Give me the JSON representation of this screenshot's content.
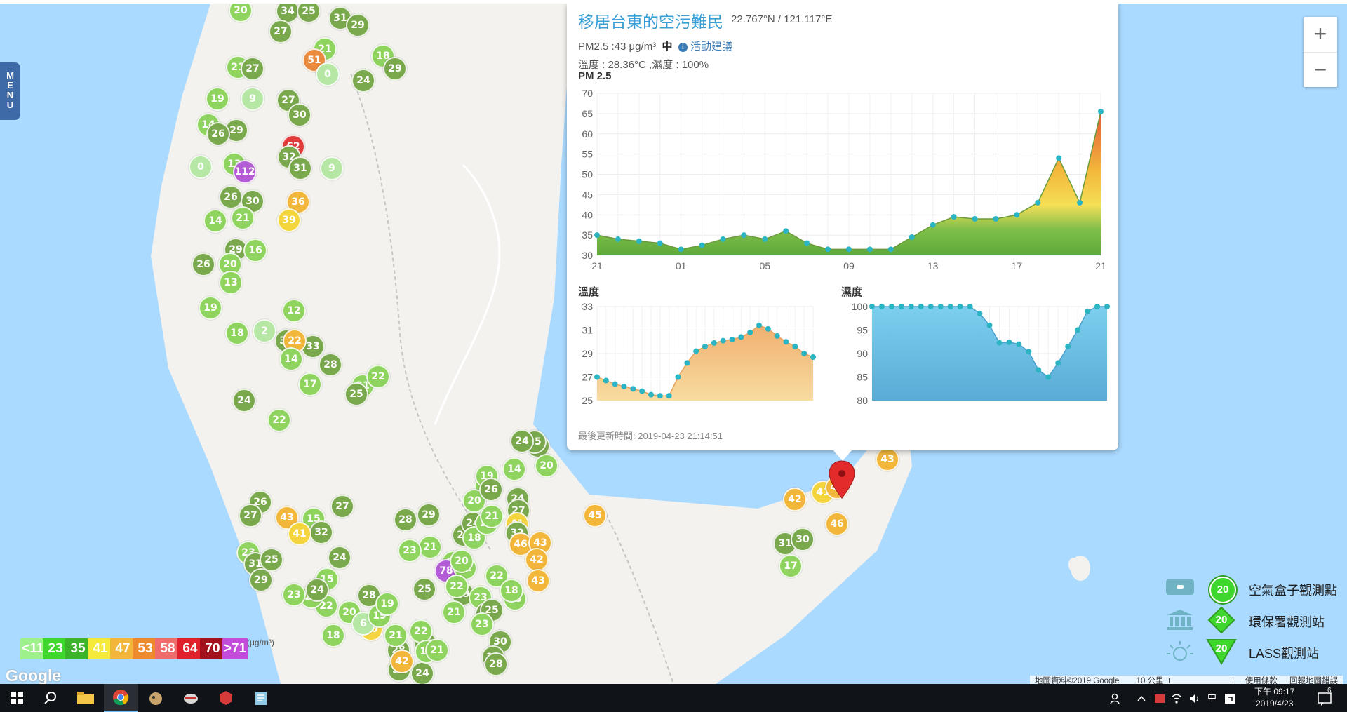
{
  "menu": {
    "letters": [
      "M",
      "E",
      "N",
      "U"
    ]
  },
  "zoom": {
    "in_label": "+",
    "out_label": "−"
  },
  "popup": {
    "title": "移居台東的空污難民",
    "coords": "22.767°N / 121.117°E",
    "pm_line": "PM2.5 :43 μg/m³",
    "level": "中",
    "activity_label": "活動建議",
    "info_glyph": "i",
    "temp_humidity_line": "溫度 : 28.36°C ,濕度 : 100%",
    "pm_chart_title": "PM 2.5",
    "temp_chart_title": "溫度",
    "hum_chart_title": "濕度",
    "footer": "最後更新時間: 2019-04-23 21:14:51"
  },
  "chart_data": [
    {
      "type": "area",
      "title": "PM 2.5",
      "x": [
        "21",
        "22",
        "23",
        "00",
        "01",
        "02",
        "03",
        "04",
        "05",
        "06",
        "07",
        "08",
        "09",
        "10",
        "11",
        "12",
        "13",
        "14",
        "15",
        "16",
        "17",
        "18",
        "19",
        "20",
        "21"
      ],
      "xticks": [
        "21",
        "01",
        "05",
        "09",
        "13",
        "17",
        "21"
      ],
      "values": [
        35,
        34,
        33.5,
        33,
        31.5,
        32.5,
        34,
        35,
        34,
        36,
        33,
        31.5,
        31.5,
        31.5,
        31.5,
        34.5,
        37.5,
        39.5,
        39,
        39,
        40,
        43,
        54,
        43,
        65.5
      ],
      "ylim": [
        30,
        70
      ],
      "yticks": [
        30,
        35,
        40,
        45,
        50,
        55,
        60,
        65,
        70
      ],
      "grid": true
    },
    {
      "type": "area",
      "title": "溫度",
      "x": [
        "21",
        "22",
        "23",
        "00",
        "01",
        "02",
        "03",
        "04",
        "05",
        "06",
        "07",
        "08",
        "09",
        "10",
        "11",
        "12",
        "13",
        "14",
        "15",
        "16",
        "17",
        "18",
        "19",
        "20",
        "21"
      ],
      "values": [
        27,
        26.7,
        26.4,
        26.2,
        26,
        25.8,
        25.5,
        25.4,
        25.4,
        27,
        28.2,
        29.2,
        29.6,
        29.9,
        30.1,
        30.2,
        30.4,
        30.8,
        31.4,
        31.1,
        30.5,
        30,
        29.6,
        29,
        28.7
      ],
      "ylim": [
        25,
        33
      ],
      "yticks": [
        25,
        27,
        29,
        31,
        33
      ],
      "grid": true
    },
    {
      "type": "area",
      "title": "濕度",
      "x": [
        "21",
        "22",
        "23",
        "00",
        "01",
        "02",
        "03",
        "04",
        "05",
        "06",
        "07",
        "08",
        "09",
        "10",
        "11",
        "12",
        "13",
        "14",
        "15",
        "16",
        "17",
        "18",
        "19",
        "20",
        "21"
      ],
      "values": [
        100,
        100,
        100,
        100,
        100,
        100,
        100,
        100,
        100,
        100,
        100,
        98.5,
        96,
        92.3,
        92.4,
        92,
        90.4,
        86.5,
        85,
        88,
        91.5,
        95,
        99,
        100,
        100
      ],
      "ylim": [
        80,
        100
      ],
      "yticks": [
        80,
        85,
        90,
        95,
        100
      ],
      "grid": true
    }
  ],
  "markers": [
    {
      "v": "20",
      "c": "#8fd45e"
    },
    {
      "v": "34",
      "c": "#7aa84c"
    },
    {
      "v": "25",
      "c": "#7aa84c"
    },
    {
      "v": "31",
      "c": "#7aa84c"
    },
    {
      "v": "29",
      "c": "#7aa84c"
    },
    {
      "v": "27",
      "c": "#7aa84c"
    },
    {
      "v": "21",
      "c": "#8fd45e"
    },
    {
      "v": "51",
      "c": "#e98a3e"
    },
    {
      "v": "0",
      "c": "#b6e7a5"
    },
    {
      "v": "24",
      "c": "#7aa84c"
    },
    {
      "v": "18",
      "c": "#8fd45e"
    },
    {
      "v": "29",
      "c": "#7aa84c"
    },
    {
      "v": "21",
      "c": "#8fd45e"
    },
    {
      "v": "27",
      "c": "#7aa84c"
    },
    {
      "v": "19",
      "c": "#8fd45e"
    },
    {
      "v": "9",
      "c": "#b6e7a5"
    },
    {
      "v": "27",
      "c": "#7aa84c"
    },
    {
      "v": "30",
      "c": "#7aa84c"
    },
    {
      "v": "14",
      "c": "#8fd45e"
    },
    {
      "v": "29",
      "c": "#7aa84c"
    },
    {
      "v": "26",
      "c": "#7aa84c"
    },
    {
      "v": "62",
      "c": "#e03c3c"
    },
    {
      "v": "32",
      "c": "#7aa84c"
    },
    {
      "v": "0",
      "c": "#b6e7a5"
    },
    {
      "v": "13",
      "c": "#8fd45e"
    },
    {
      "v": "112",
      "c": "#b45bd6"
    },
    {
      "v": "31",
      "c": "#7aa84c"
    },
    {
      "v": "9",
      "c": "#b6e7a5"
    },
    {
      "v": "26",
      "c": "#7aa84c"
    },
    {
      "v": "30",
      "c": "#7aa84c"
    },
    {
      "v": "36",
      "c": "#f2b63b"
    },
    {
      "v": "39",
      "c": "#f5d53e"
    },
    {
      "v": "14",
      "c": "#8fd45e"
    },
    {
      "v": "21",
      "c": "#8fd45e"
    },
    {
      "v": "29",
      "c": "#7aa84c"
    },
    {
      "v": "16",
      "c": "#8fd45e"
    },
    {
      "v": "26",
      "c": "#7aa84c"
    },
    {
      "v": "20",
      "c": "#8fd45e"
    },
    {
      "v": "13",
      "c": "#8fd45e"
    },
    {
      "v": "19",
      "c": "#8fd45e"
    },
    {
      "v": "18",
      "c": "#8fd45e"
    },
    {
      "v": "12",
      "c": "#8fd45e"
    },
    {
      "v": "24",
      "c": "#7aa84c"
    },
    {
      "v": "22",
      "c": "#8fd45e"
    },
    {
      "v": "21",
      "c": "#8fd45e"
    },
    {
      "v": "34",
      "c": "#7aa84c"
    },
    {
      "v": "33",
      "c": "#7aa84c"
    },
    {
      "v": "28",
      "c": "#7aa84c"
    },
    {
      "v": "2",
      "c": "#b6e7a5"
    },
    {
      "v": "22",
      "c": "#f2b63b"
    },
    {
      "v": "14",
      "c": "#8fd45e"
    },
    {
      "v": "17",
      "c": "#8fd45e"
    },
    {
      "v": "25",
      "c": "#7aa84c"
    },
    {
      "v": "22",
      "c": "#8fd45e"
    },
    {
      "v": "26",
      "c": "#7aa84c"
    },
    {
      "v": "27",
      "c": "#7aa84c"
    },
    {
      "v": "23",
      "c": "#8fd45e"
    },
    {
      "v": "31",
      "c": "#7aa84c"
    },
    {
      "v": "29",
      "c": "#7aa84c"
    },
    {
      "v": "18",
      "c": "#8fd45e"
    },
    {
      "v": "43",
      "c": "#f2b63b"
    },
    {
      "v": "15",
      "c": "#8fd45e"
    },
    {
      "v": "32",
      "c": "#7aa84c"
    },
    {
      "v": "27",
      "c": "#7aa84c"
    },
    {
      "v": "24",
      "c": "#7aa84c"
    },
    {
      "v": "22",
      "c": "#8fd45e"
    },
    {
      "v": "20",
      "c": "#8fd45e"
    },
    {
      "v": "40",
      "c": "#f5d53e"
    },
    {
      "v": "28",
      "c": "#7aa84c"
    },
    {
      "v": "30",
      "c": "#7aa84c"
    },
    {
      "v": "24",
      "c": "#7aa84c"
    },
    {
      "v": "27",
      "c": "#7aa84c"
    },
    {
      "v": "18",
      "c": "#8fd45e"
    },
    {
      "v": "6",
      "c": "#b6e7a5"
    },
    {
      "v": "19",
      "c": "#8fd45e"
    },
    {
      "v": "22",
      "c": "#8fd45e"
    },
    {
      "v": "42",
      "c": "#f2b63b"
    },
    {
      "v": "28",
      "c": "#7aa84c"
    },
    {
      "v": "15",
      "c": "#8fd45e"
    },
    {
      "v": "23",
      "c": "#8fd45e"
    },
    {
      "v": "25",
      "c": "#7aa84c"
    },
    {
      "v": "41",
      "c": "#f5d53e"
    },
    {
      "v": "24",
      "c": "#7aa84c"
    },
    {
      "v": "23",
      "c": "#8fd45e"
    },
    {
      "v": "21",
      "c": "#8fd45e"
    },
    {
      "v": "13",
      "c": "#8fd45e"
    },
    {
      "v": "21",
      "c": "#8fd45e"
    },
    {
      "v": "23",
      "c": "#8fd45e"
    },
    {
      "v": "25",
      "c": "#7aa84c"
    },
    {
      "v": "21",
      "c": "#8fd45e"
    },
    {
      "v": "29",
      "c": "#7aa84c"
    },
    {
      "v": "28",
      "c": "#7aa84c"
    },
    {
      "v": "23",
      "c": "#8fd45e"
    },
    {
      "v": "19",
      "c": "#8fd45e"
    },
    {
      "v": "78",
      "c": "#b45bd6"
    },
    {
      "v": "25",
      "c": "#7aa84c"
    },
    {
      "v": "24",
      "c": "#7aa84c"
    },
    {
      "v": "18",
      "c": "#8fd45e"
    },
    {
      "v": "23",
      "c": "#8fd45e"
    },
    {
      "v": "22",
      "c": "#8fd45e"
    },
    {
      "v": "20",
      "c": "#8fd45e"
    },
    {
      "v": "21",
      "c": "#8fd45e"
    },
    {
      "v": "12",
      "c": "#8fd45e"
    },
    {
      "v": "22",
      "c": "#8fd45e"
    },
    {
      "v": "29",
      "c": "#7aa84c"
    },
    {
      "v": "23",
      "c": "#8fd45e"
    },
    {
      "v": "26",
      "c": "#7aa84c"
    },
    {
      "v": "21",
      "c": "#8fd45e"
    },
    {
      "v": "25",
      "c": "#7aa84c"
    },
    {
      "v": "23",
      "c": "#8fd45e"
    },
    {
      "v": "30",
      "c": "#7aa84c"
    },
    {
      "v": "24",
      "c": "#7aa84c"
    },
    {
      "v": "28",
      "c": "#7aa84c"
    },
    {
      "v": "23",
      "c": "#8fd45e"
    },
    {
      "v": "18",
      "c": "#8fd45e"
    },
    {
      "v": "22",
      "c": "#8fd45e"
    },
    {
      "v": "20",
      "c": "#8fd45e"
    },
    {
      "v": "32",
      "c": "#7aa84c"
    },
    {
      "v": "25",
      "c": "#7aa84c"
    },
    {
      "v": "24",
      "c": "#7aa84c"
    },
    {
      "v": "14",
      "c": "#8fd45e"
    },
    {
      "v": "20",
      "c": "#8fd45e"
    },
    {
      "v": "19",
      "c": "#8fd45e"
    },
    {
      "v": "26",
      "c": "#7aa84c"
    },
    {
      "v": "24",
      "c": "#7aa84c"
    },
    {
      "v": "27",
      "c": "#7aa84c"
    },
    {
      "v": "41",
      "c": "#f5d53e"
    },
    {
      "v": "32",
      "c": "#7aa84c"
    },
    {
      "v": "46",
      "c": "#f2b63b"
    },
    {
      "v": "43",
      "c": "#f2b63b"
    },
    {
      "v": "42",
      "c": "#f2b63b"
    },
    {
      "v": "43",
      "c": "#f2b63b"
    },
    {
      "v": "45",
      "c": "#f2b63b"
    },
    {
      "v": "42",
      "c": "#f2b63b"
    },
    {
      "v": "41",
      "c": "#f5d53e"
    },
    {
      "v": "43",
      "c": "#f2b63b"
    },
    {
      "v": "43",
      "c": "#f2b63b"
    },
    {
      "v": "46",
      "c": "#f2b63b"
    },
    {
      "v": "31",
      "c": "#7aa84c"
    },
    {
      "v": "30",
      "c": "#7aa84c"
    },
    {
      "v": "17",
      "c": "#8fd45e"
    }
  ],
  "scale_legend": {
    "unit": "(μg/m³)",
    "cells": [
      {
        "label": "<11",
        "color": "#9ef08b"
      },
      {
        "label": "23",
        "color": "#3fd62e"
      },
      {
        "label": "35",
        "color": "#3bb32a"
      },
      {
        "label": "41",
        "color": "#f5e93a"
      },
      {
        "label": "47",
        "color": "#f2b63b"
      },
      {
        "label": "53",
        "color": "#ec8a2c"
      },
      {
        "label": "58",
        "color": "#f06b6b"
      },
      {
        "label": "64",
        "color": "#e0202a"
      },
      {
        "label": "70",
        "color": "#a3121c"
      },
      {
        "label": ">71",
        "color": "#c24bd9"
      }
    ]
  },
  "google_logo": "Google",
  "station_legend": {
    "sample_value": "20",
    "items": [
      {
        "label": "空氣盒子觀測點",
        "icon": "airbox-icon"
      },
      {
        "label": "環保署觀測站",
        "icon": "epa-building-icon"
      },
      {
        "label": "LASS觀測站",
        "icon": "lass-sun-icon"
      }
    ]
  },
  "attribution": {
    "map_data": "地圖資料©2019 Google",
    "scale": "10 公里",
    "terms": "使用條款",
    "report": "回報地圖錯誤"
  },
  "taskbar": {
    "apps": [
      "windows-start-icon",
      "search-icon",
      "file-explorer-icon",
      "chrome-icon",
      "app-mascot-icon",
      "app-shell-icon",
      "app-red-icon",
      "app-notepad-icon"
    ],
    "tray_ime": "中",
    "clock_time": "下午 09:17",
    "clock_date": "2019/4/23",
    "notification_count": "6"
  }
}
